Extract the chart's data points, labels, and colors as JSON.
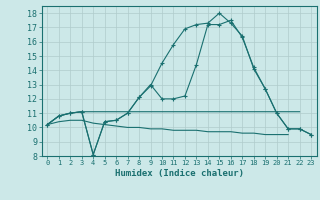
{
  "xlabel": "Humidex (Indice chaleur)",
  "bg_color": "#cce8e8",
  "grid_color": "#b0cccc",
  "line_color": "#1a7070",
  "series": [
    {
      "x": [
        0,
        1,
        2,
        3,
        4,
        5,
        6,
        7,
        8,
        9,
        10,
        11,
        12,
        13,
        14,
        15,
        16,
        17,
        18,
        19,
        20,
        21,
        22,
        23
      ],
      "y": [
        10.2,
        10.8,
        11.0,
        11.1,
        8.1,
        10.4,
        10.5,
        11.0,
        12.1,
        12.9,
        14.5,
        15.8,
        16.9,
        17.2,
        17.3,
        18.0,
        17.3,
        16.4,
        14.1,
        12.7,
        11.0,
        9.9,
        9.9,
        9.5
      ],
      "marker": "+"
    },
    {
      "x": [
        0,
        1,
        2,
        3,
        4,
        5,
        6,
        7,
        8,
        9,
        10,
        11,
        12,
        13,
        14,
        15,
        16,
        17,
        18,
        19,
        20,
        21,
        22,
        23
      ],
      "y": [
        10.2,
        10.8,
        11.0,
        11.1,
        8.1,
        10.4,
        10.5,
        11.0,
        12.1,
        13.0,
        12.0,
        12.0,
        12.2,
        14.4,
        17.2,
        17.2,
        17.5,
        16.3,
        14.2,
        12.7,
        11.0,
        9.9,
        9.9,
        9.5
      ],
      "marker": "+"
    },
    {
      "x": [
        0,
        1,
        2,
        3,
        4,
        5,
        6,
        7,
        8,
        9,
        10,
        11,
        12,
        13,
        14,
        15,
        16,
        17,
        18,
        19,
        20,
        21,
        22,
        23
      ],
      "y": [
        10.2,
        10.8,
        11.0,
        11.1,
        11.1,
        11.1,
        11.1,
        11.1,
        11.1,
        11.1,
        11.1,
        11.1,
        11.1,
        11.1,
        11.1,
        11.1,
        11.1,
        11.1,
        11.1,
        11.1,
        11.1,
        11.1,
        11.1,
        null
      ],
      "marker": null
    },
    {
      "x": [
        0,
        1,
        2,
        3,
        4,
        5,
        6,
        7,
        8,
        9,
        10,
        11,
        12,
        13,
        14,
        15,
        16,
        17,
        18,
        19,
        20,
        21,
        22,
        23
      ],
      "y": [
        10.2,
        10.4,
        10.5,
        10.5,
        10.3,
        10.2,
        10.1,
        10.0,
        10.0,
        9.9,
        9.9,
        9.8,
        9.8,
        9.8,
        9.7,
        9.7,
        9.7,
        9.6,
        9.6,
        9.5,
        9.5,
        9.5,
        null,
        null
      ],
      "marker": null
    }
  ],
  "xlim": [
    0,
    23
  ],
  "ylim": [
    8,
    18.5
  ],
  "yticks": [
    8,
    9,
    10,
    11,
    12,
    13,
    14,
    15,
    16,
    17,
    18
  ],
  "xticks": [
    0,
    1,
    2,
    3,
    4,
    5,
    6,
    7,
    8,
    9,
    10,
    11,
    12,
    13,
    14,
    15,
    16,
    17,
    18,
    19,
    20,
    21,
    22,
    23
  ]
}
